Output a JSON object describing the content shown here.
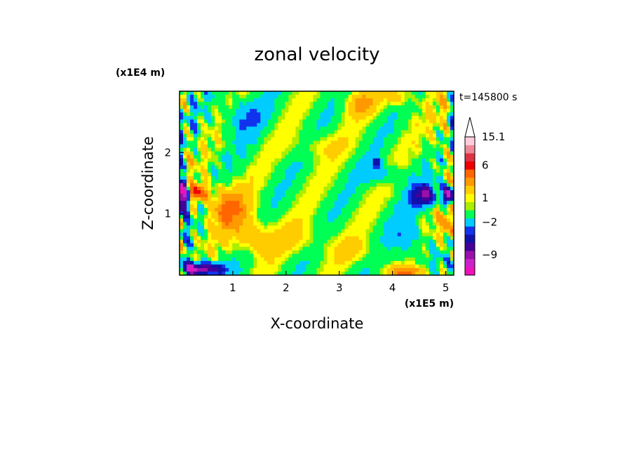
{
  "chart_data": {
    "type": "heatmap",
    "title": "zonal velocity",
    "xlabel": "X-coordinate",
    "ylabel": "Z-coordinate",
    "x_scale_label": "(x1E5 m)",
    "y_scale_label": "(x1E4 m)",
    "time_label": "t=145800 s",
    "xlim": [
      0,
      5.15
    ],
    "ylim": [
      0,
      3.0
    ],
    "x_ticks": [
      1,
      2,
      3,
      4,
      5
    ],
    "y_ticks": [
      1,
      2
    ],
    "colorbar": {
      "levels": [
        {
          "value": -12,
          "color": "#ee11bb"
        },
        {
          "value": -10.5,
          "color": "#cc22cc"
        },
        {
          "value": -9,
          "color": "#9911aa"
        },
        {
          "value": -7.5,
          "color": "#440099"
        },
        {
          "value": -6,
          "color": "#1111aa"
        },
        {
          "value": -4,
          "color": "#1133ee"
        },
        {
          "value": -2.5,
          "color": "#00ccff"
        },
        {
          "value": -1,
          "color": "#00ff55"
        },
        {
          "value": 0.25,
          "color": "#aaee00"
        },
        {
          "value": 0.75,
          "color": "#ffff00"
        },
        {
          "value": 1.5,
          "color": "#ffcc00"
        },
        {
          "value": 3,
          "color": "#ff9900"
        },
        {
          "value": 4.5,
          "color": "#ff6600"
        },
        {
          "value": 6,
          "color": "#ee0000"
        },
        {
          "value": 9,
          "color": "#dd3344"
        },
        {
          "value": 12,
          "color": "#ee8899"
        },
        {
          "value": 14,
          "color": "#ffccdd"
        }
      ],
      "tick_labels": [
        {
          "value": 15.1,
          "label": "15.1"
        },
        {
          "value": 6,
          "label": "6"
        },
        {
          "value": 1,
          "label": "1"
        },
        {
          "value": -2,
          "label": "−2"
        },
        {
          "value": -9,
          "label": "−9"
        }
      ]
    },
    "field_features": [
      {
        "x": 0.05,
        "z": 1.3,
        "amp": -12,
        "sx": 0.12,
        "sz": 0.25
      },
      {
        "x": 0.25,
        "z": 0.1,
        "amp": -9,
        "sx": 0.25,
        "sz": 0.12
      },
      {
        "x": 0.6,
        "z": 0.1,
        "amp": -6,
        "sx": 0.3,
        "sz": 0.1
      },
      {
        "x": 0.35,
        "z": 1.35,
        "amp": 6,
        "sx": 0.2,
        "sz": 0.15
      },
      {
        "x": 0.9,
        "z": 1.1,
        "amp": 4.5,
        "sx": 0.4,
        "sz": 0.35
      },
      {
        "x": 1.4,
        "z": 0.6,
        "amp": 3,
        "sx": 0.4,
        "sz": 0.3
      },
      {
        "x": 1.2,
        "z": 2.6,
        "amp": -2.5,
        "sx": 0.4,
        "sz": 0.3
      },
      {
        "x": 2.3,
        "z": 0.6,
        "amp": 1.5,
        "sx": 0.5,
        "sz": 0.25
      },
      {
        "x": 3.3,
        "z": 0.4,
        "amp": 1.5,
        "sx": 0.5,
        "sz": 0.2
      },
      {
        "x": 3.4,
        "z": 2.8,
        "amp": 3,
        "sx": 0.3,
        "sz": 0.2
      },
      {
        "x": 4.1,
        "z": 2.9,
        "amp": 3,
        "sx": 0.25,
        "sz": 0.15
      },
      {
        "x": 3.8,
        "z": 1.65,
        "amp": -2.5,
        "sx": 0.35,
        "sz": 0.15
      },
      {
        "x": 3.7,
        "z": 1.85,
        "amp": -6,
        "sx": 0.08,
        "sz": 0.07
      },
      {
        "x": 4.6,
        "z": 1.3,
        "amp": -7.5,
        "sx": 0.25,
        "sz": 0.18
      },
      {
        "x": 5.05,
        "z": 1.3,
        "amp": -12,
        "sx": 0.1,
        "sz": 0.15
      },
      {
        "x": 4.3,
        "z": 0.6,
        "amp": -2.5,
        "sx": 0.3,
        "sz": 0.35
      },
      {
        "x": 4.3,
        "z": 0.05,
        "amp": 4.5,
        "sx": 0.35,
        "sz": 0.1
      },
      {
        "x": 5.0,
        "z": 0.8,
        "amp": 4.5,
        "sx": 0.12,
        "sz": 0.3
      },
      {
        "x": 2.6,
        "z": 2.1,
        "amp": 1.5,
        "sx": 0.5,
        "sz": 0.2
      },
      {
        "x": 4.9,
        "z": 2.3,
        "amp": 1.5,
        "sx": 0.2,
        "sz": 0.5
      }
    ]
  }
}
